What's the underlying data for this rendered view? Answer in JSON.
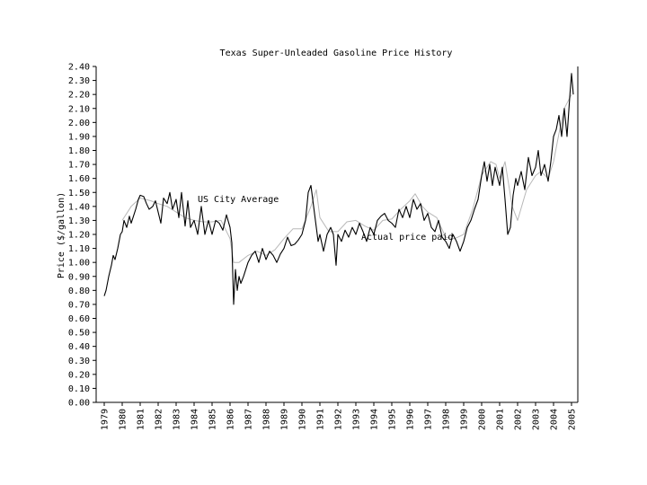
{
  "chart_data": {
    "type": "line",
    "title": "Texas Super-Unleaded Gasoline Price History",
    "xlabel": "",
    "ylabel": "Price ($/gallon)",
    "ylim": [
      0,
      2.4
    ],
    "xlim": [
      1979,
      2005.4
    ],
    "y_ticks": [
      "0.00",
      "0.10",
      "0.20",
      "0.30",
      "0.40",
      "0.50",
      "0.60",
      "0.70",
      "0.80",
      "0.90",
      "1.00",
      "1.10",
      "1.20",
      "1.30",
      "1.40",
      "1.50",
      "1.60",
      "1.70",
      "1.80",
      "1.90",
      "2.00",
      "2.10",
      "2.20",
      "2.30",
      "2.40"
    ],
    "x_ticks": [
      "1979",
      "1980",
      "1981",
      "1982",
      "1983",
      "1984",
      "1985",
      "1986",
      "1987",
      "1988",
      "1989",
      "1990",
      "1991",
      "1992",
      "1993",
      "1994",
      "1995",
      "1996",
      "1997",
      "1998",
      "1999",
      "2000",
      "2001",
      "2002",
      "2003",
      "2004",
      "2005"
    ],
    "grid": false,
    "annotations": [
      {
        "text": "US City Average",
        "x": 1984.2,
        "y": 1.43
      },
      {
        "text": "Actual price paid",
        "x": 1993.3,
        "y": 1.16
      }
    ],
    "series": [
      {
        "name": "US City Average",
        "color": "#b8b8b8",
        "x": [
          1980.0,
          1980.5,
          1981.0,
          1981.3,
          1981.6,
          1982.0,
          1982.5,
          1983.0,
          1983.5,
          1984.0,
          1984.5,
          1985.0,
          1985.5,
          1986.0,
          1986.2,
          1986.5,
          1987.0,
          1987.5,
          1988.0,
          1988.5,
          1989.0,
          1989.5,
          1990.0,
          1990.5,
          1990.8,
          1991.0,
          1991.5,
          1992.0,
          1992.5,
          1993.0,
          1993.5,
          1994.0,
          1994.5,
          1995.0,
          1995.5,
          1996.0,
          1996.3,
          1996.7,
          1997.0,
          1997.5,
          1998.0,
          1998.5,
          1999.0,
          1999.5,
          2000.0,
          2000.5,
          2000.8,
          2001.0,
          2001.3,
          2001.7,
          2002.0,
          2002.5,
          2003.0,
          2003.3,
          2003.7,
          2004.0,
          2004.3,
          2004.6,
          2005.0
        ],
        "y": [
          1.3,
          1.4,
          1.46,
          1.45,
          1.44,
          1.42,
          1.4,
          1.36,
          1.32,
          1.3,
          1.29,
          1.29,
          1.3,
          1.17,
          1.0,
          1.0,
          1.05,
          1.08,
          1.05,
          1.09,
          1.17,
          1.24,
          1.24,
          1.4,
          1.52,
          1.32,
          1.22,
          1.22,
          1.29,
          1.3,
          1.26,
          1.23,
          1.3,
          1.31,
          1.38,
          1.44,
          1.49,
          1.4,
          1.36,
          1.32,
          1.18,
          1.17,
          1.2,
          1.38,
          1.62,
          1.72,
          1.7,
          1.6,
          1.72,
          1.4,
          1.3,
          1.52,
          1.62,
          1.65,
          1.6,
          1.72,
          1.92,
          2.1,
          2.2
        ]
      },
      {
        "name": "Actual price paid",
        "color": "#000000",
        "x": [
          1979.0,
          1979.1,
          1979.25,
          1979.4,
          1979.5,
          1979.6,
          1979.75,
          1979.9,
          1980.0,
          1980.1,
          1980.25,
          1980.4,
          1980.5,
          1980.6,
          1980.75,
          1980.9,
          1981.0,
          1981.2,
          1981.35,
          1981.5,
          1981.7,
          1981.85,
          1982.0,
          1982.15,
          1982.3,
          1982.5,
          1982.65,
          1982.8,
          1983.0,
          1983.15,
          1983.3,
          1983.5,
          1983.65,
          1983.8,
          1984.0,
          1984.2,
          1984.4,
          1984.6,
          1984.8,
          1985.0,
          1985.2,
          1985.4,
          1985.6,
          1985.8,
          1986.0,
          1986.1,
          1986.2,
          1986.3,
          1986.4,
          1986.5,
          1986.6,
          1986.75,
          1987.0,
          1987.2,
          1987.4,
          1987.6,
          1987.8,
          1988.0,
          1988.2,
          1988.4,
          1988.6,
          1988.8,
          1989.0,
          1989.2,
          1989.4,
          1989.6,
          1989.8,
          1990.0,
          1990.2,
          1990.35,
          1990.5,
          1990.6,
          1990.75,
          1990.9,
          1991.0,
          1991.2,
          1991.4,
          1991.6,
          1991.75,
          1991.9,
          1992.0,
          1992.2,
          1992.4,
          1992.6,
          1992.8,
          1993.0,
          1993.2,
          1993.4,
          1993.6,
          1993.8,
          1994.0,
          1994.2,
          1994.4,
          1994.6,
          1994.8,
          1995.0,
          1995.2,
          1995.4,
          1995.6,
          1995.8,
          1996.0,
          1996.2,
          1996.4,
          1996.6,
          1996.8,
          1997.0,
          1997.2,
          1997.4,
          1997.6,
          1997.8,
          1998.0,
          1998.2,
          1998.4,
          1998.6,
          1998.8,
          1999.0,
          1999.2,
          1999.4,
          1999.6,
          1999.8,
          2000.0,
          2000.15,
          2000.3,
          2000.45,
          2000.6,
          2000.75,
          2000.9,
          2001.0,
          2001.15,
          2001.3,
          2001.45,
          2001.6,
          2001.75,
          2001.9,
          2002.0,
          2002.2,
          2002.4,
          2002.6,
          2002.8,
          2003.0,
          2003.15,
          2003.3,
          2003.5,
          2003.7,
          2003.85,
          2004.0,
          2004.15,
          2004.3,
          2004.45,
          2004.6,
          2004.75,
          2004.9,
          2005.0,
          2005.1
        ],
        "y": [
          0.76,
          0.8,
          0.9,
          0.98,
          1.05,
          1.02,
          1.1,
          1.2,
          1.22,
          1.3,
          1.25,
          1.33,
          1.28,
          1.32,
          1.38,
          1.45,
          1.48,
          1.47,
          1.42,
          1.38,
          1.4,
          1.44,
          1.36,
          1.28,
          1.46,
          1.42,
          1.5,
          1.38,
          1.45,
          1.32,
          1.5,
          1.26,
          1.44,
          1.25,
          1.3,
          1.2,
          1.4,
          1.2,
          1.3,
          1.2,
          1.3,
          1.28,
          1.23,
          1.34,
          1.25,
          1.14,
          0.7,
          0.95,
          0.8,
          0.9,
          0.85,
          0.9,
          1.0,
          1.05,
          1.08,
          1.0,
          1.1,
          1.02,
          1.08,
          1.05,
          1.0,
          1.06,
          1.1,
          1.18,
          1.12,
          1.13,
          1.16,
          1.2,
          1.3,
          1.5,
          1.55,
          1.45,
          1.3,
          1.15,
          1.2,
          1.08,
          1.2,
          1.25,
          1.2,
          0.98,
          1.2,
          1.15,
          1.23,
          1.18,
          1.25,
          1.2,
          1.28,
          1.22,
          1.15,
          1.25,
          1.2,
          1.3,
          1.33,
          1.35,
          1.3,
          1.28,
          1.25,
          1.38,
          1.32,
          1.4,
          1.32,
          1.45,
          1.38,
          1.42,
          1.3,
          1.35,
          1.25,
          1.22,
          1.3,
          1.18,
          1.15,
          1.1,
          1.2,
          1.15,
          1.08,
          1.15,
          1.25,
          1.3,
          1.38,
          1.45,
          1.62,
          1.72,
          1.58,
          1.7,
          1.55,
          1.68,
          1.6,
          1.55,
          1.68,
          1.45,
          1.2,
          1.25,
          1.48,
          1.6,
          1.55,
          1.65,
          1.52,
          1.75,
          1.62,
          1.68,
          1.8,
          1.62,
          1.7,
          1.58,
          1.72,
          1.9,
          1.95,
          2.05,
          1.9,
          2.1,
          1.9,
          2.18,
          2.35,
          2.2
        ]
      }
    ]
  }
}
